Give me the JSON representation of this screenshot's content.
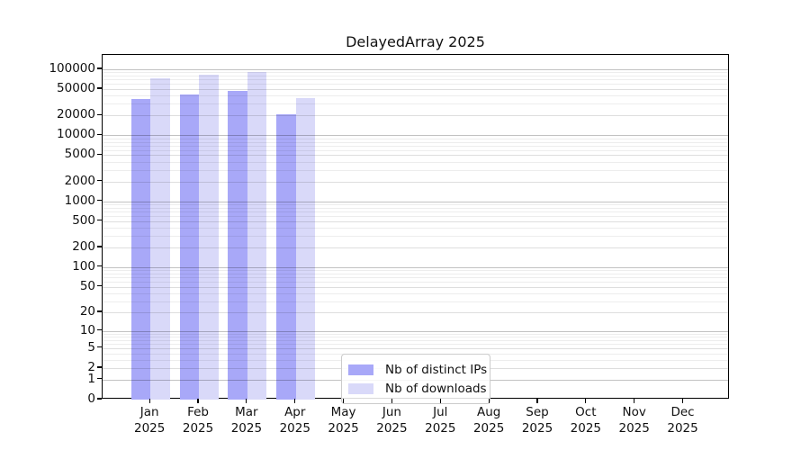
{
  "chart_data": {
    "type": "bar",
    "title": "DelayedArray 2025",
    "xlabel": "",
    "ylabel": "",
    "y_scale": "log10(1+x)",
    "ylim": [
      0,
      165000
    ],
    "grid": "horizontal",
    "legend_position": "lower center inside plot",
    "y_ticks": [
      100000,
      50000,
      20000,
      10000,
      5000,
      2000,
      1000,
      500,
      200,
      100,
      50,
      20,
      10,
      5,
      2,
      1,
      0
    ],
    "categories": [
      {
        "month": "Jan",
        "year": "2025"
      },
      {
        "month": "Feb",
        "year": "2025"
      },
      {
        "month": "Mar",
        "year": "2025"
      },
      {
        "month": "Apr",
        "year": "2025"
      },
      {
        "month": "May",
        "year": "2025"
      },
      {
        "month": "Jun",
        "year": "2025"
      },
      {
        "month": "Jul",
        "year": "2025"
      },
      {
        "month": "Aug",
        "year": "2025"
      },
      {
        "month": "Sep",
        "year": "2025"
      },
      {
        "month": "Oct",
        "year": "2025"
      },
      {
        "month": "Nov",
        "year": "2025"
      },
      {
        "month": "Dec",
        "year": "2025"
      }
    ],
    "series": [
      {
        "name": "Nb of distinct IPs",
        "color": "#a8a8f8",
        "values": [
          36000,
          42000,
          47000,
          21000,
          null,
          null,
          null,
          null,
          null,
          null,
          null,
          null
        ]
      },
      {
        "name": "Nb of downloads",
        "color": "#d9d9f9",
        "values": [
          73000,
          83000,
          92000,
          37000,
          null,
          null,
          null,
          null,
          null,
          null,
          null,
          null
        ]
      }
    ]
  }
}
